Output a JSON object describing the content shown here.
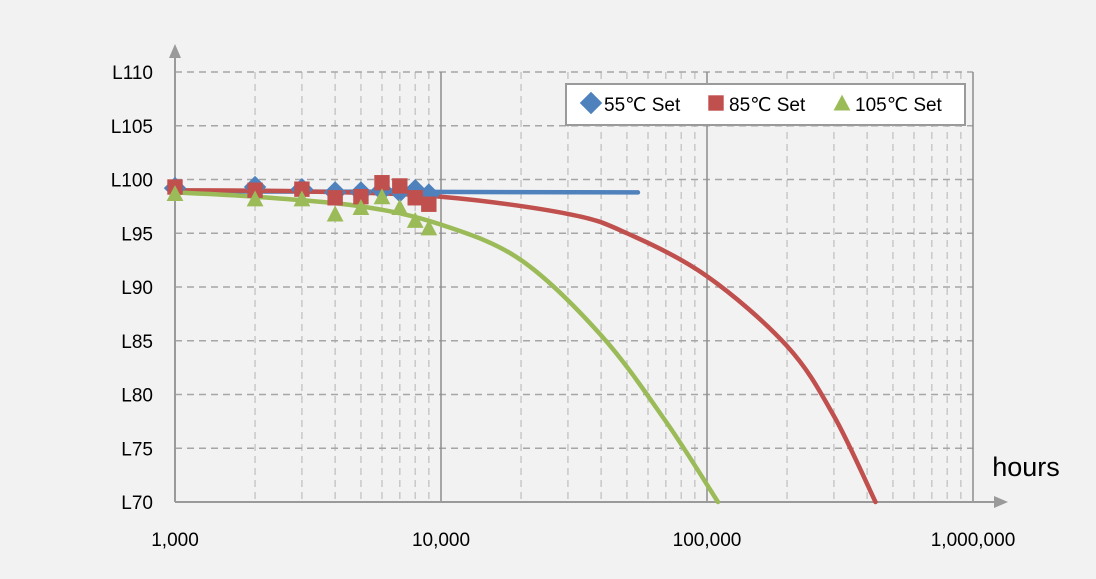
{
  "chart_data": {
    "type": "line",
    "xscale": "log",
    "xlim": [
      1000,
      1000000
    ],
    "ylim": [
      70,
      110
    ],
    "xlabel": "hours",
    "ylabel": "",
    "grid": true,
    "legend_position": "top-right",
    "x_ticks": [
      {
        "value": 1000,
        "label": "1,000"
      },
      {
        "value": 10000,
        "label": "10,000"
      },
      {
        "value": 100000,
        "label": "100,000"
      },
      {
        "value": 1000000,
        "label": "1,000,000"
      }
    ],
    "y_ticks": [
      {
        "value": 70,
        "label": "L70"
      },
      {
        "value": 75,
        "label": "L75"
      },
      {
        "value": 80,
        "label": "L80"
      },
      {
        "value": 85,
        "label": "L85"
      },
      {
        "value": 90,
        "label": "L90"
      },
      {
        "value": 95,
        "label": "L95"
      },
      {
        "value": 100,
        "label": "L100"
      },
      {
        "value": 105,
        "label": "L105"
      },
      {
        "value": 110,
        "label": "L110"
      }
    ],
    "series": [
      {
        "name": "55℃ Set",
        "color": "#4f81bd",
        "marker": "diamond",
        "points": [
          {
            "x": 1000,
            "y": 99.2
          },
          {
            "x": 2000,
            "y": 99.3
          },
          {
            "x": 3000,
            "y": 99.1
          },
          {
            "x": 4000,
            "y": 98.8
          },
          {
            "x": 5000,
            "y": 98.8
          },
          {
            "x": 6000,
            "y": 99.0
          },
          {
            "x": 7000,
            "y": 98.9
          },
          {
            "x": 8000,
            "y": 99.0
          },
          {
            "x": 9000,
            "y": 98.6
          }
        ],
        "fit": [
          {
            "x": 1000,
            "y": 98.9
          },
          {
            "x": 55000,
            "y": 98.8
          }
        ]
      },
      {
        "name": "85℃ Set",
        "color": "#c0504d",
        "marker": "square",
        "points": [
          {
            "x": 1000,
            "y": 99.3
          },
          {
            "x": 2000,
            "y": 99.0
          },
          {
            "x": 3000,
            "y": 99.1
          },
          {
            "x": 4000,
            "y": 98.3
          },
          {
            "x": 5000,
            "y": 98.4
          },
          {
            "x": 6000,
            "y": 99.7
          },
          {
            "x": 7000,
            "y": 99.4
          },
          {
            "x": 8000,
            "y": 98.3
          },
          {
            "x": 9000,
            "y": 97.7
          }
        ],
        "fit": [
          {
            "x": 1000,
            "y": 99.0
          },
          {
            "x": 3000,
            "y": 98.9
          },
          {
            "x": 10000,
            "y": 98.4
          },
          {
            "x": 30000,
            "y": 96.8
          },
          {
            "x": 50000,
            "y": 95.0
          },
          {
            "x": 100000,
            "y": 91.0
          },
          {
            "x": 200000,
            "y": 84.5
          },
          {
            "x": 300000,
            "y": 78.0
          },
          {
            "x": 430000,
            "y": 70.0
          }
        ]
      },
      {
        "name": "105℃ Set",
        "color": "#9bbb59",
        "marker": "triangle",
        "points": [
          {
            "x": 1000,
            "y": 98.7
          },
          {
            "x": 2000,
            "y": 98.2
          },
          {
            "x": 3000,
            "y": 98.2
          },
          {
            "x": 4000,
            "y": 96.8
          },
          {
            "x": 5000,
            "y": 97.4
          },
          {
            "x": 6000,
            "y": 98.4
          },
          {
            "x": 7000,
            "y": 97.4
          },
          {
            "x": 8000,
            "y": 96.2
          },
          {
            "x": 9000,
            "y": 95.5
          }
        ],
        "fit": [
          {
            "x": 1000,
            "y": 98.8
          },
          {
            "x": 2000,
            "y": 98.4
          },
          {
            "x": 5000,
            "y": 97.5
          },
          {
            "x": 10000,
            "y": 95.8
          },
          {
            "x": 20000,
            "y": 92.5
          },
          {
            "x": 40000,
            "y": 85.5
          },
          {
            "x": 70000,
            "y": 77.5
          },
          {
            "x": 110000,
            "y": 70.0
          }
        ]
      }
    ]
  }
}
